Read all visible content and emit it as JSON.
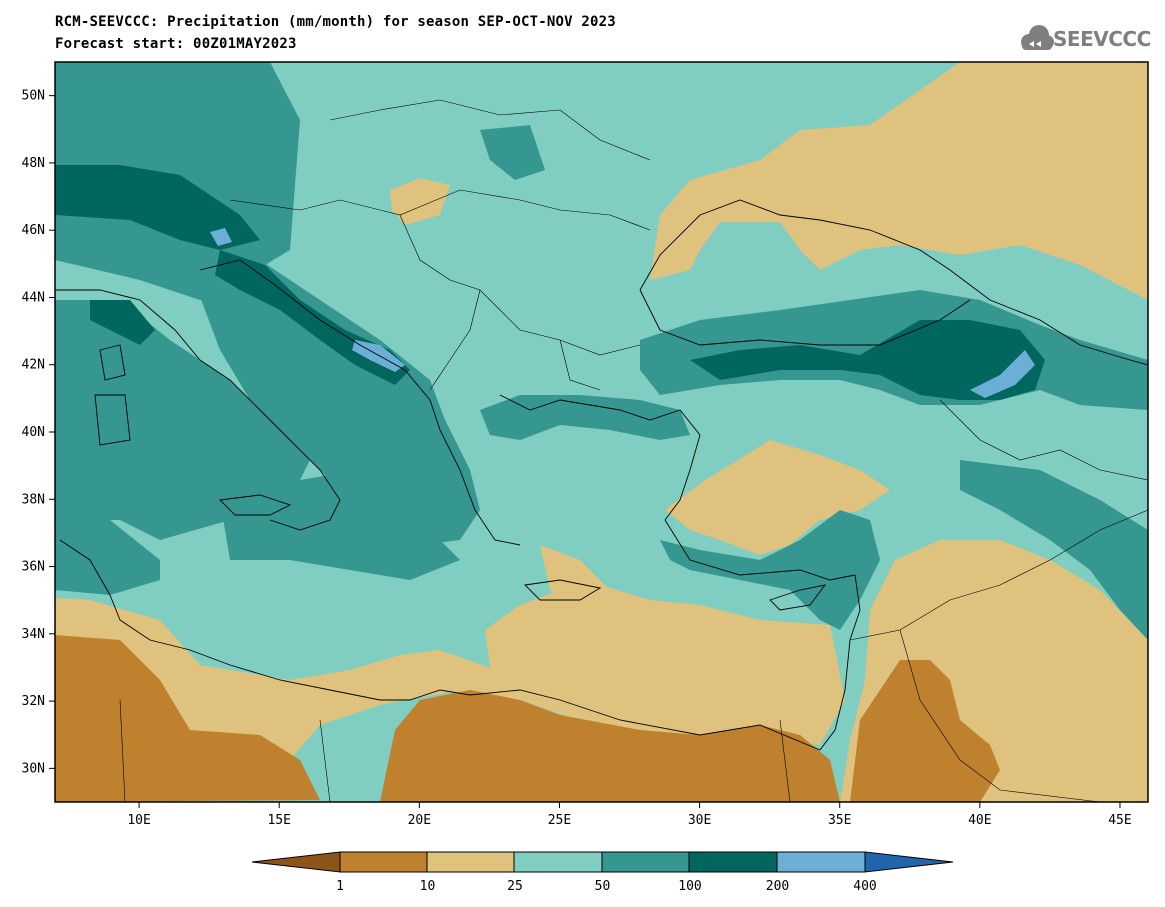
{
  "header": {
    "title_line1": "RCM-SEEVCCC: Precipitation (mm/month) for season SEP-OCT-NOV 2023",
    "title_line2": "Forecast start: 00Z01MAY2023",
    "logo_text": "SEEVCCC"
  },
  "map": {
    "lon_range": [
      7,
      46
    ],
    "lat_range": [
      29,
      51
    ],
    "x_ticks": [
      "10E",
      "15E",
      "20E",
      "25E",
      "30E",
      "35E",
      "40E",
      "45E"
    ],
    "y_ticks": [
      "50N",
      "48N",
      "46N",
      "44N",
      "42N",
      "40N",
      "38N",
      "36N",
      "34N",
      "32N",
      "30N"
    ]
  },
  "colorbar": {
    "labels": [
      "1",
      "10",
      "25",
      "50",
      "100",
      "200",
      "400"
    ],
    "colors": {
      "below_1": "#8c5419",
      "1_10": "#bf812d",
      "10_25": "#dfc27d",
      "25_50": "#80cdc1",
      "50_100": "#35978f",
      "100_200": "#01665e",
      "200_400": "#6baed6",
      "above_400": "#2166ac"
    }
  }
}
